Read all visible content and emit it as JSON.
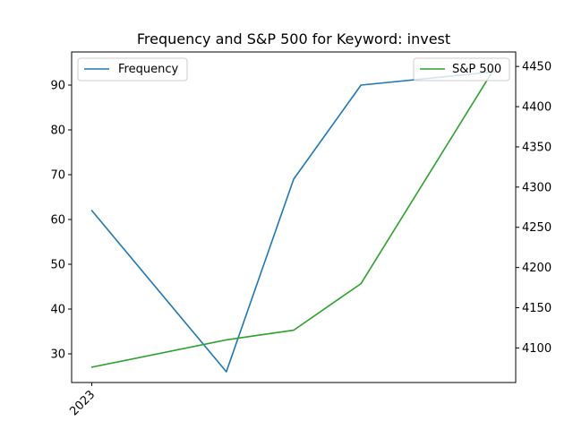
{
  "chart_data": {
    "type": "line",
    "title": "Frequency and S&P 500 for Keyword: invest",
    "xlabel": "",
    "ylabel": "",
    "x_tick_labels": [
      "2023"
    ],
    "x": [
      0,
      1,
      1.5,
      2,
      3
    ],
    "xlim": [
      -0.15,
      3.15
    ],
    "series": [
      {
        "name": "Frequency",
        "axis": "left",
        "color": "#1f77b4",
        "values": [
          62,
          26,
          69,
          90,
          93
        ]
      },
      {
        "name": "S&P 500",
        "axis": "right",
        "color": "#2ca02c",
        "values": [
          4076,
          4110,
          4122,
          4180,
          4450
        ]
      }
    ],
    "y_left": {
      "lim": [
        23.6,
        97.4
      ],
      "ticks": [
        30,
        40,
        50,
        60,
        70,
        80,
        90
      ]
    },
    "y_right": {
      "lim": [
        4057,
        4468
      ],
      "ticks": [
        4100,
        4150,
        4200,
        4250,
        4300,
        4350,
        4400,
        4450
      ]
    },
    "grid": false,
    "legends": [
      {
        "series": "Frequency",
        "placement": "upper-left"
      },
      {
        "series": "S&P 500",
        "placement": "upper-right"
      }
    ]
  }
}
